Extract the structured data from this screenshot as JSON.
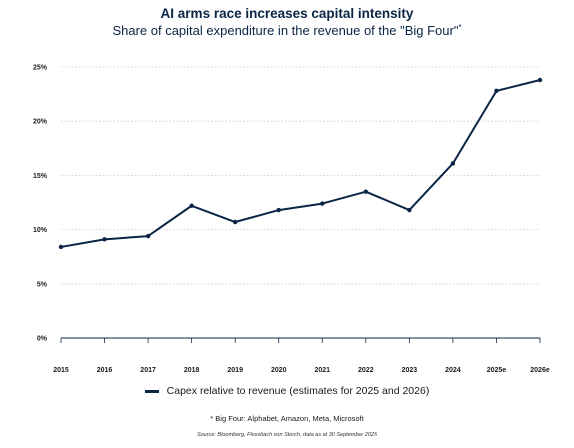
{
  "title": "AI arms race increases capital intensity",
  "subtitle": "Share of capital expenditure in the revenue of the \"Big Four\"",
  "subtitle_marker": "*",
  "legend_label": "Capex relative to revenue (estimates for 2025 and 2026)",
  "footnote": "* Big Four: Alphabet, Amazon, Meta, Microsoft",
  "source": "Source: Bloomberg, Flossbach von Storch, data as at 30 September 2025",
  "colors": {
    "line": "#0b2545",
    "grid": "#c8c8c8",
    "axis": "#0b2545"
  },
  "chart_data": {
    "type": "line",
    "title": "AI arms race increases capital intensity",
    "categories": [
      "2015",
      "2016",
      "2017",
      "2018",
      "2019",
      "2020",
      "2021",
      "2022",
      "2023",
      "2024",
      "2025e",
      "2026e"
    ],
    "series": [
      {
        "name": "Capex relative to revenue (estimates for 2025 and 2026)",
        "values": [
          8.4,
          9.1,
          9.4,
          12.2,
          10.7,
          11.8,
          12.4,
          13.5,
          11.8,
          16.1,
          22.8,
          23.8
        ]
      }
    ],
    "y_ticks": [
      0,
      5,
      10,
      15,
      20,
      25
    ],
    "y_tick_labels": [
      "0%",
      "5%",
      "10%",
      "15%",
      "20%",
      "25%"
    ],
    "ylim": [
      0,
      25
    ],
    "grid": "horizontal-dotted",
    "legend_position": "bottom"
  }
}
